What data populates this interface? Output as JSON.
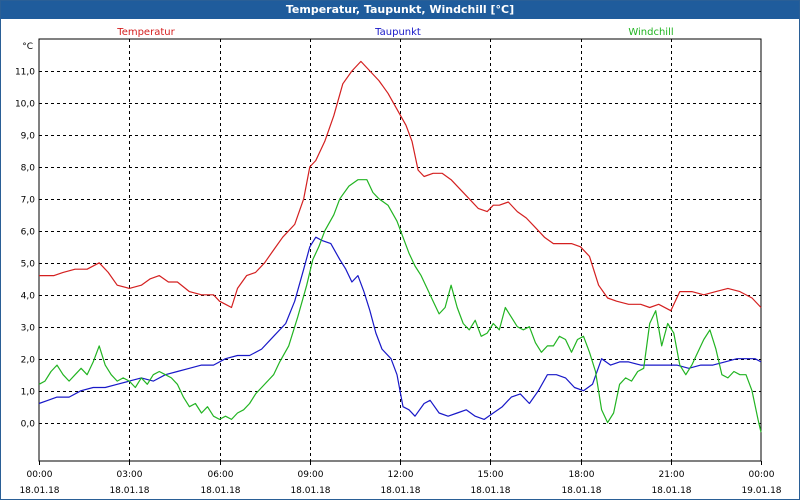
{
  "window": {
    "title": "Temperatur, Taupunkt, Windchill [°C]"
  },
  "chart_data": {
    "type": "line",
    "title": "Temperatur, Taupunkt, Windchill [°C]",
    "ylabel": "°C",
    "xlabel": "",
    "ylim": [
      -1.2,
      12.0
    ],
    "xlim": [
      0,
      24
    ],
    "grid": true,
    "yticks": [
      0.0,
      1.0,
      2.0,
      3.0,
      4.0,
      5.0,
      6.0,
      7.0,
      8.0,
      9.0,
      10.0,
      11.0
    ],
    "ytick_labels": [
      "0,0",
      "1,0",
      "2,0",
      "3,0",
      "4,0",
      "5,0",
      "6,0",
      "7,0",
      "8,0",
      "9,0",
      "10,0",
      "11,0"
    ],
    "xticks": [
      {
        "time": "00:00",
        "date": "18.01.18"
      },
      {
        "time": "03:00",
        "date": "18.01.18"
      },
      {
        "time": "06:00",
        "date": "18.01.18"
      },
      {
        "time": "09:00",
        "date": "18.01.18"
      },
      {
        "time": "12:00",
        "date": "18.01.18"
      },
      {
        "time": "15:00",
        "date": "18.01.18"
      },
      {
        "time": "18:00",
        "date": "18.01.18"
      },
      {
        "time": "21:00",
        "date": "18.01.18"
      },
      {
        "time": "00:00",
        "date": "19.01.18"
      }
    ],
    "series": [
      {
        "name": "Temperatur",
        "color": "#d42020",
        "points": [
          [
            0.0,
            4.6
          ],
          [
            0.5,
            4.6
          ],
          [
            0.8,
            4.7
          ],
          [
            1.2,
            4.8
          ],
          [
            1.6,
            4.8
          ],
          [
            2.0,
            5.0
          ],
          [
            2.3,
            4.7
          ],
          [
            2.6,
            4.3
          ],
          [
            3.0,
            4.2
          ],
          [
            3.4,
            4.3
          ],
          [
            3.7,
            4.5
          ],
          [
            4.0,
            4.6
          ],
          [
            4.3,
            4.4
          ],
          [
            4.6,
            4.4
          ],
          [
            5.0,
            4.1
          ],
          [
            5.4,
            4.0
          ],
          [
            5.8,
            4.0
          ],
          [
            6.0,
            3.8
          ],
          [
            6.2,
            3.7
          ],
          [
            6.4,
            3.6
          ],
          [
            6.6,
            4.2
          ],
          [
            6.9,
            4.6
          ],
          [
            7.2,
            4.7
          ],
          [
            7.5,
            5.0
          ],
          [
            7.8,
            5.4
          ],
          [
            8.1,
            5.8
          ],
          [
            8.5,
            6.2
          ],
          [
            8.8,
            7.0
          ],
          [
            9.0,
            8.0
          ],
          [
            9.2,
            8.2
          ],
          [
            9.5,
            8.8
          ],
          [
            9.8,
            9.6
          ],
          [
            10.1,
            10.6
          ],
          [
            10.4,
            11.0
          ],
          [
            10.7,
            11.3
          ],
          [
            11.0,
            11.0
          ],
          [
            11.3,
            10.7
          ],
          [
            11.6,
            10.3
          ],
          [
            11.9,
            9.8
          ],
          [
            12.2,
            9.3
          ],
          [
            12.4,
            8.8
          ],
          [
            12.6,
            7.9
          ],
          [
            12.8,
            7.7
          ],
          [
            13.1,
            7.8
          ],
          [
            13.4,
            7.8
          ],
          [
            13.7,
            7.6
          ],
          [
            14.0,
            7.3
          ],
          [
            14.3,
            7.0
          ],
          [
            14.6,
            6.7
          ],
          [
            14.9,
            6.6
          ],
          [
            15.1,
            6.8
          ],
          [
            15.3,
            6.8
          ],
          [
            15.6,
            6.9
          ],
          [
            15.9,
            6.6
          ],
          [
            16.2,
            6.4
          ],
          [
            16.5,
            6.1
          ],
          [
            16.8,
            5.8
          ],
          [
            17.1,
            5.6
          ],
          [
            17.4,
            5.6
          ],
          [
            17.7,
            5.6
          ],
          [
            18.0,
            5.5
          ],
          [
            18.3,
            5.2
          ],
          [
            18.6,
            4.3
          ],
          [
            18.9,
            3.9
          ],
          [
            19.2,
            3.8
          ],
          [
            19.6,
            3.7
          ],
          [
            20.0,
            3.7
          ],
          [
            20.3,
            3.6
          ],
          [
            20.6,
            3.7
          ],
          [
            21.0,
            3.5
          ],
          [
            21.3,
            4.1
          ],
          [
            21.7,
            4.1
          ],
          [
            22.1,
            4.0
          ],
          [
            22.5,
            4.1
          ],
          [
            22.9,
            4.2
          ],
          [
            23.3,
            4.1
          ],
          [
            23.7,
            3.9
          ],
          [
            24.0,
            3.6
          ]
        ]
      },
      {
        "name": "Taupunkt",
        "color": "#1818c8",
        "points": [
          [
            0.0,
            0.6
          ],
          [
            0.3,
            0.7
          ],
          [
            0.6,
            0.8
          ],
          [
            1.0,
            0.8
          ],
          [
            1.4,
            1.0
          ],
          [
            1.8,
            1.1
          ],
          [
            2.2,
            1.1
          ],
          [
            2.6,
            1.2
          ],
          [
            3.0,
            1.3
          ],
          [
            3.4,
            1.4
          ],
          [
            3.8,
            1.3
          ],
          [
            4.2,
            1.5
          ],
          [
            4.6,
            1.6
          ],
          [
            5.0,
            1.7
          ],
          [
            5.4,
            1.8
          ],
          [
            5.8,
            1.8
          ],
          [
            6.2,
            2.0
          ],
          [
            6.6,
            2.1
          ],
          [
            7.0,
            2.1
          ],
          [
            7.4,
            2.3
          ],
          [
            7.8,
            2.7
          ],
          [
            8.2,
            3.1
          ],
          [
            8.5,
            3.8
          ],
          [
            8.8,
            4.8
          ],
          [
            9.0,
            5.5
          ],
          [
            9.2,
            5.8
          ],
          [
            9.4,
            5.7
          ],
          [
            9.7,
            5.6
          ],
          [
            10.0,
            5.1
          ],
          [
            10.2,
            4.8
          ],
          [
            10.4,
            4.4
          ],
          [
            10.6,
            4.6
          ],
          [
            10.8,
            4.1
          ],
          [
            11.0,
            3.5
          ],
          [
            11.2,
            2.8
          ],
          [
            11.4,
            2.3
          ],
          [
            11.7,
            2.0
          ],
          [
            11.9,
            1.5
          ],
          [
            12.1,
            0.5
          ],
          [
            12.3,
            0.4
          ],
          [
            12.5,
            0.2
          ],
          [
            12.8,
            0.6
          ],
          [
            13.0,
            0.7
          ],
          [
            13.3,
            0.3
          ],
          [
            13.6,
            0.2
          ],
          [
            13.9,
            0.3
          ],
          [
            14.2,
            0.4
          ],
          [
            14.5,
            0.2
          ],
          [
            14.8,
            0.1
          ],
          [
            15.1,
            0.3
          ],
          [
            15.4,
            0.5
          ],
          [
            15.7,
            0.8
          ],
          [
            16.0,
            0.9
          ],
          [
            16.3,
            0.6
          ],
          [
            16.6,
            1.0
          ],
          [
            16.9,
            1.5
          ],
          [
            17.2,
            1.5
          ],
          [
            17.5,
            1.4
          ],
          [
            17.8,
            1.1
          ],
          [
            18.1,
            1.0
          ],
          [
            18.4,
            1.2
          ],
          [
            18.7,
            2.0
          ],
          [
            19.0,
            1.8
          ],
          [
            19.3,
            1.9
          ],
          [
            19.6,
            1.9
          ],
          [
            20.0,
            1.8
          ],
          [
            20.4,
            1.8
          ],
          [
            20.8,
            1.8
          ],
          [
            21.2,
            1.8
          ],
          [
            21.6,
            1.7
          ],
          [
            22.0,
            1.8
          ],
          [
            22.4,
            1.8
          ],
          [
            22.8,
            1.9
          ],
          [
            23.2,
            2.0
          ],
          [
            23.5,
            2.0
          ],
          [
            23.8,
            2.0
          ],
          [
            24.0,
            1.9
          ]
        ]
      },
      {
        "name": "Windchill",
        "color": "#22b422",
        "points": [
          [
            0.0,
            1.2
          ],
          [
            0.2,
            1.3
          ],
          [
            0.4,
            1.6
          ],
          [
            0.6,
            1.8
          ],
          [
            0.8,
            1.5
          ],
          [
            1.0,
            1.3
          ],
          [
            1.2,
            1.5
          ],
          [
            1.4,
            1.7
          ],
          [
            1.6,
            1.5
          ],
          [
            1.8,
            1.9
          ],
          [
            2.0,
            2.4
          ],
          [
            2.2,
            1.8
          ],
          [
            2.4,
            1.5
          ],
          [
            2.6,
            1.3
          ],
          [
            2.8,
            1.4
          ],
          [
            3.0,
            1.3
          ],
          [
            3.2,
            1.1
          ],
          [
            3.4,
            1.4
          ],
          [
            3.6,
            1.2
          ],
          [
            3.8,
            1.5
          ],
          [
            4.0,
            1.6
          ],
          [
            4.2,
            1.5
          ],
          [
            4.4,
            1.4
          ],
          [
            4.6,
            1.2
          ],
          [
            4.8,
            0.8
          ],
          [
            5.0,
            0.5
          ],
          [
            5.2,
            0.6
          ],
          [
            5.4,
            0.3
          ],
          [
            5.6,
            0.5
          ],
          [
            5.8,
            0.2
          ],
          [
            6.0,
            0.1
          ],
          [
            6.2,
            0.2
          ],
          [
            6.4,
            0.1
          ],
          [
            6.6,
            0.3
          ],
          [
            6.8,
            0.4
          ],
          [
            7.0,
            0.6
          ],
          [
            7.2,
            0.9
          ],
          [
            7.4,
            1.1
          ],
          [
            7.6,
            1.3
          ],
          [
            7.8,
            1.5
          ],
          [
            8.0,
            1.9
          ],
          [
            8.3,
            2.4
          ],
          [
            8.6,
            3.3
          ],
          [
            8.9,
            4.3
          ],
          [
            9.1,
            5.1
          ],
          [
            9.3,
            5.5
          ],
          [
            9.5,
            6.0
          ],
          [
            9.8,
            6.5
          ],
          [
            10.0,
            7.0
          ],
          [
            10.3,
            7.4
          ],
          [
            10.6,
            7.6
          ],
          [
            10.9,
            7.6
          ],
          [
            11.1,
            7.2
          ],
          [
            11.3,
            7.0
          ],
          [
            11.6,
            6.8
          ],
          [
            11.9,
            6.3
          ],
          [
            12.1,
            5.8
          ],
          [
            12.3,
            5.3
          ],
          [
            12.5,
            4.9
          ],
          [
            12.7,
            4.6
          ],
          [
            12.9,
            4.2
          ],
          [
            13.1,
            3.8
          ],
          [
            13.3,
            3.4
          ],
          [
            13.5,
            3.6
          ],
          [
            13.7,
            4.3
          ],
          [
            13.9,
            3.6
          ],
          [
            14.1,
            3.1
          ],
          [
            14.3,
            2.9
          ],
          [
            14.5,
            3.2
          ],
          [
            14.7,
            2.7
          ],
          [
            14.9,
            2.8
          ],
          [
            15.1,
            3.1
          ],
          [
            15.3,
            2.9
          ],
          [
            15.5,
            3.6
          ],
          [
            15.7,
            3.3
          ],
          [
            15.9,
            3.0
          ],
          [
            16.1,
            2.9
          ],
          [
            16.3,
            3.0
          ],
          [
            16.5,
            2.5
          ],
          [
            16.7,
            2.2
          ],
          [
            16.9,
            2.4
          ],
          [
            17.1,
            2.4
          ],
          [
            17.3,
            2.7
          ],
          [
            17.5,
            2.6
          ],
          [
            17.7,
            2.2
          ],
          [
            17.9,
            2.6
          ],
          [
            18.1,
            2.7
          ],
          [
            18.3,
            2.2
          ],
          [
            18.5,
            1.6
          ],
          [
            18.7,
            0.4
          ],
          [
            18.9,
            0.0
          ],
          [
            19.1,
            0.3
          ],
          [
            19.3,
            1.2
          ],
          [
            19.5,
            1.4
          ],
          [
            19.7,
            1.3
          ],
          [
            19.9,
            1.6
          ],
          [
            20.1,
            1.7
          ],
          [
            20.3,
            3.1
          ],
          [
            20.5,
            3.5
          ],
          [
            20.7,
            2.4
          ],
          [
            20.9,
            3.1
          ],
          [
            21.1,
            2.8
          ],
          [
            21.3,
            1.8
          ],
          [
            21.5,
            1.5
          ],
          [
            21.7,
            1.8
          ],
          [
            21.9,
            2.2
          ],
          [
            22.1,
            2.6
          ],
          [
            22.3,
            2.9
          ],
          [
            22.5,
            2.3
          ],
          [
            22.7,
            1.5
          ],
          [
            22.9,
            1.4
          ],
          [
            23.1,
            1.6
          ],
          [
            23.3,
            1.5
          ],
          [
            23.5,
            1.5
          ],
          [
            23.7,
            1.0
          ],
          [
            23.9,
            0.1
          ],
          [
            24.0,
            -0.3
          ]
        ]
      }
    ]
  }
}
